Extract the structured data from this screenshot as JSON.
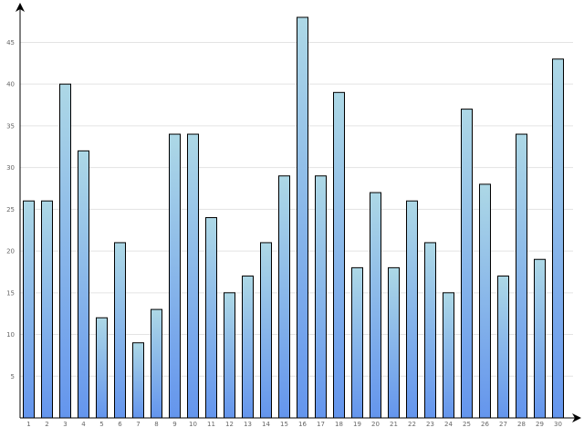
{
  "chart_data": {
    "type": "bar",
    "categories": [
      "1",
      "2",
      "3",
      "4",
      "5",
      "6",
      "7",
      "8",
      "9",
      "10",
      "11",
      "12",
      "13",
      "14",
      "15",
      "16",
      "17",
      "18",
      "19",
      "20",
      "21",
      "22",
      "23",
      "24",
      "25",
      "26",
      "27",
      "28",
      "29",
      "30"
    ],
    "values": [
      26,
      26,
      40,
      32,
      12,
      21,
      9,
      13,
      34,
      34,
      24,
      15,
      17,
      21,
      29,
      48,
      29,
      39,
      18,
      27,
      18,
      26,
      21,
      15,
      37,
      28,
      17,
      34,
      19,
      43
    ],
    "yticks": [
      "5",
      "10",
      "15",
      "20",
      "25",
      "30",
      "35",
      "40",
      "45"
    ],
    "ylim": [
      0,
      48
    ],
    "grid": true,
    "colors": {
      "bar_top": "#add8e6",
      "bar_bottom": "#6495ed",
      "grid": "#e3e3e3",
      "axis": "#000000",
      "tick_text": "#666666"
    }
  }
}
